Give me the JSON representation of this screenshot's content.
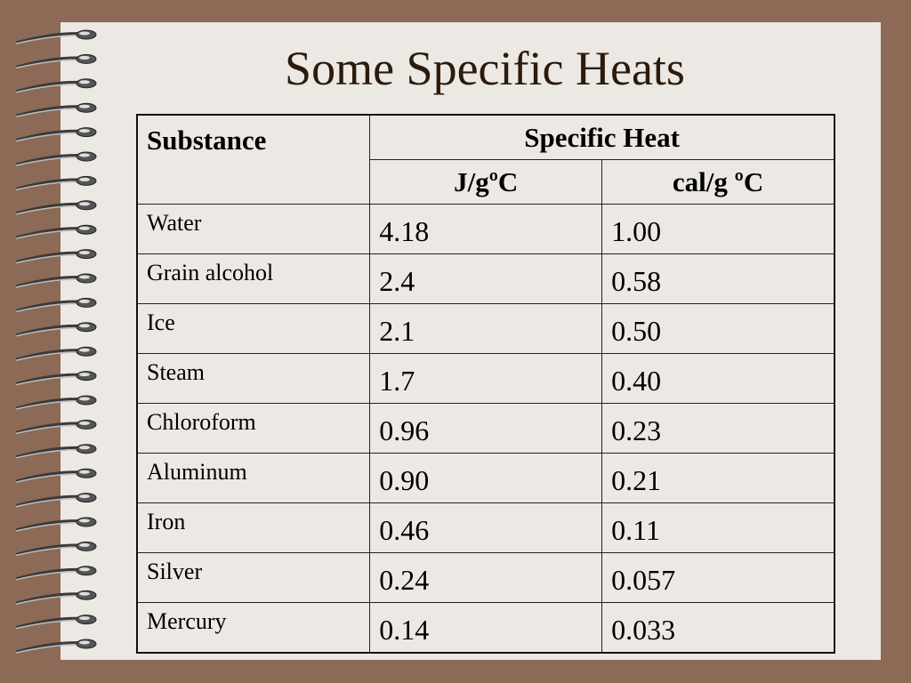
{
  "title": "Some Specific Heats",
  "table": {
    "header": {
      "substance": "Substance",
      "specific_heat": "Specific Heat",
      "units": [
        "J/gºC",
        "cal/g ºC"
      ]
    },
    "rows": [
      [
        "Water",
        "4.18",
        "1.00"
      ],
      [
        "Grain alcohol",
        "2.4",
        "0.58"
      ],
      [
        "Ice",
        "2.1",
        "0.50"
      ],
      [
        "Steam",
        "1.7",
        "0.40"
      ],
      [
        "Chloroform",
        "0.96",
        "0.23"
      ],
      [
        "Aluminum",
        "0.90",
        "0.21"
      ],
      [
        "Iron",
        "0.46",
        "0.11"
      ],
      [
        "Silver",
        "0.24",
        "0.057"
      ],
      [
        "Mercury",
        "0.14",
        "0.033"
      ]
    ]
  }
}
